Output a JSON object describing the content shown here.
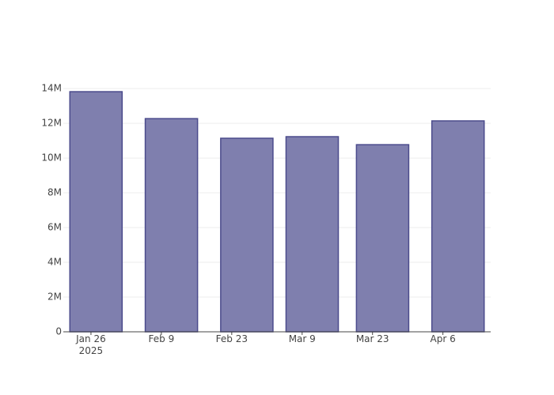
{
  "chart_data": {
    "type": "bar",
    "x": [
      "2025-01-27",
      "2025-02-11",
      "2025-02-26",
      "2025-03-11",
      "2025-03-25",
      "2025-04-09"
    ],
    "values": [
      13820000,
      12270000,
      11140000,
      11230000,
      10770000,
      12140000
    ],
    "color": "#7f7fae",
    "edge_color": "#4b4b8c",
    "xlim": [
      "2025-01-20T12:00:00Z",
      "2025-04-15T12:00:00Z"
    ],
    "xticks": [
      {
        "value": "2025-01-26",
        "label": "Jan 26\n2025"
      },
      {
        "value": "2025-02-09",
        "label": "Feb 9"
      },
      {
        "value": "2025-02-23",
        "label": "Feb 23"
      },
      {
        "value": "2025-03-09",
        "label": "Mar 9"
      },
      {
        "value": "2025-03-23",
        "label": "Mar 23"
      },
      {
        "value": "2025-04-06",
        "label": "Apr 6"
      }
    ],
    "ylim": [
      0,
      14550000
    ],
    "yticks": [
      0,
      {
        "value": 2000000,
        "label": "2M"
      },
      {
        "value": 4000000,
        "label": "4M"
      },
      {
        "value": 6000000,
        "label": "6M"
      },
      {
        "value": 8000000,
        "label": "8M"
      },
      {
        "value": 10000000,
        "label": "10M"
      },
      {
        "value": 12000000,
        "label": "12M"
      },
      {
        "value": 14000000,
        "label": "14M"
      }
    ],
    "grid": true
  }
}
